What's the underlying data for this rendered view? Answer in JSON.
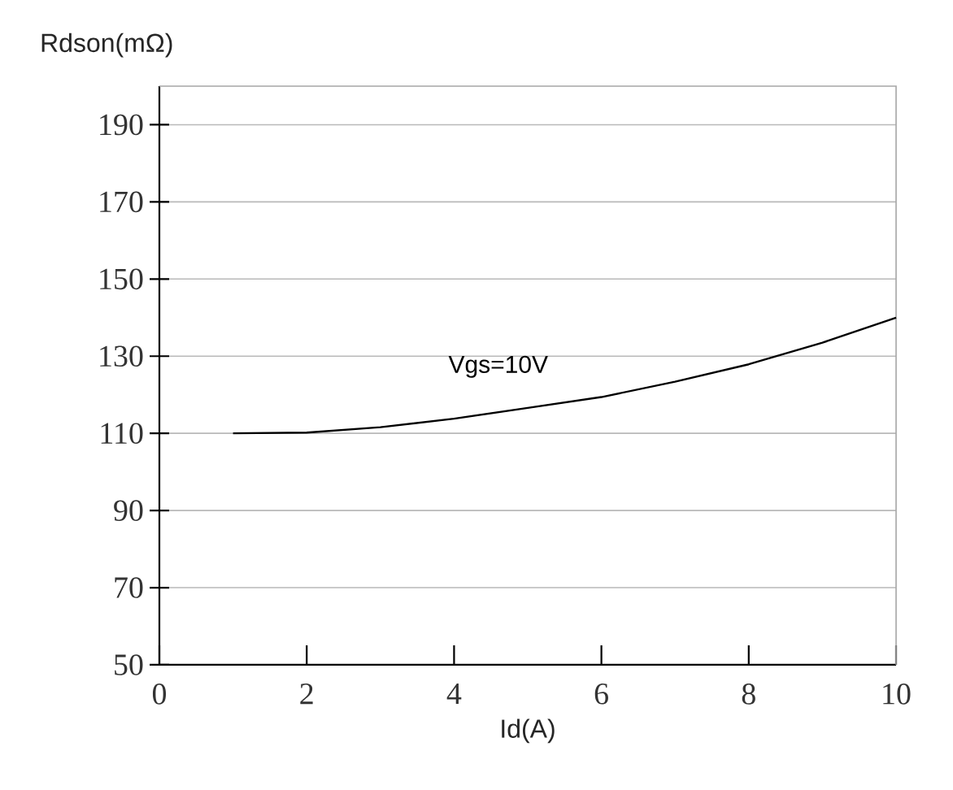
{
  "chart_data": {
    "type": "line",
    "xlabel": "Id(A)",
    "ylabel": "Rdson(mΩ)",
    "x": [
      1,
      2,
      3,
      4,
      5,
      6,
      7,
      8,
      9,
      10
    ],
    "series": [
      {
        "color": "#000000",
        "values": [
          110,
          110.2,
          111.6,
          113.8,
          116.6,
          119.4,
          123.4,
          127.9,
          133.5,
          140
        ]
      }
    ],
    "xlim": [
      0,
      10
    ],
    "xticks": [
      0,
      2,
      4,
      6,
      8,
      10
    ],
    "ylim": [
      50,
      200
    ],
    "yticks": [
      50,
      70,
      90,
      110,
      130,
      150,
      170,
      190
    ],
    "grid": "y",
    "marker": "none",
    "line_style": "solid",
    "annotations": [
      "Vgs=10V"
    ]
  }
}
